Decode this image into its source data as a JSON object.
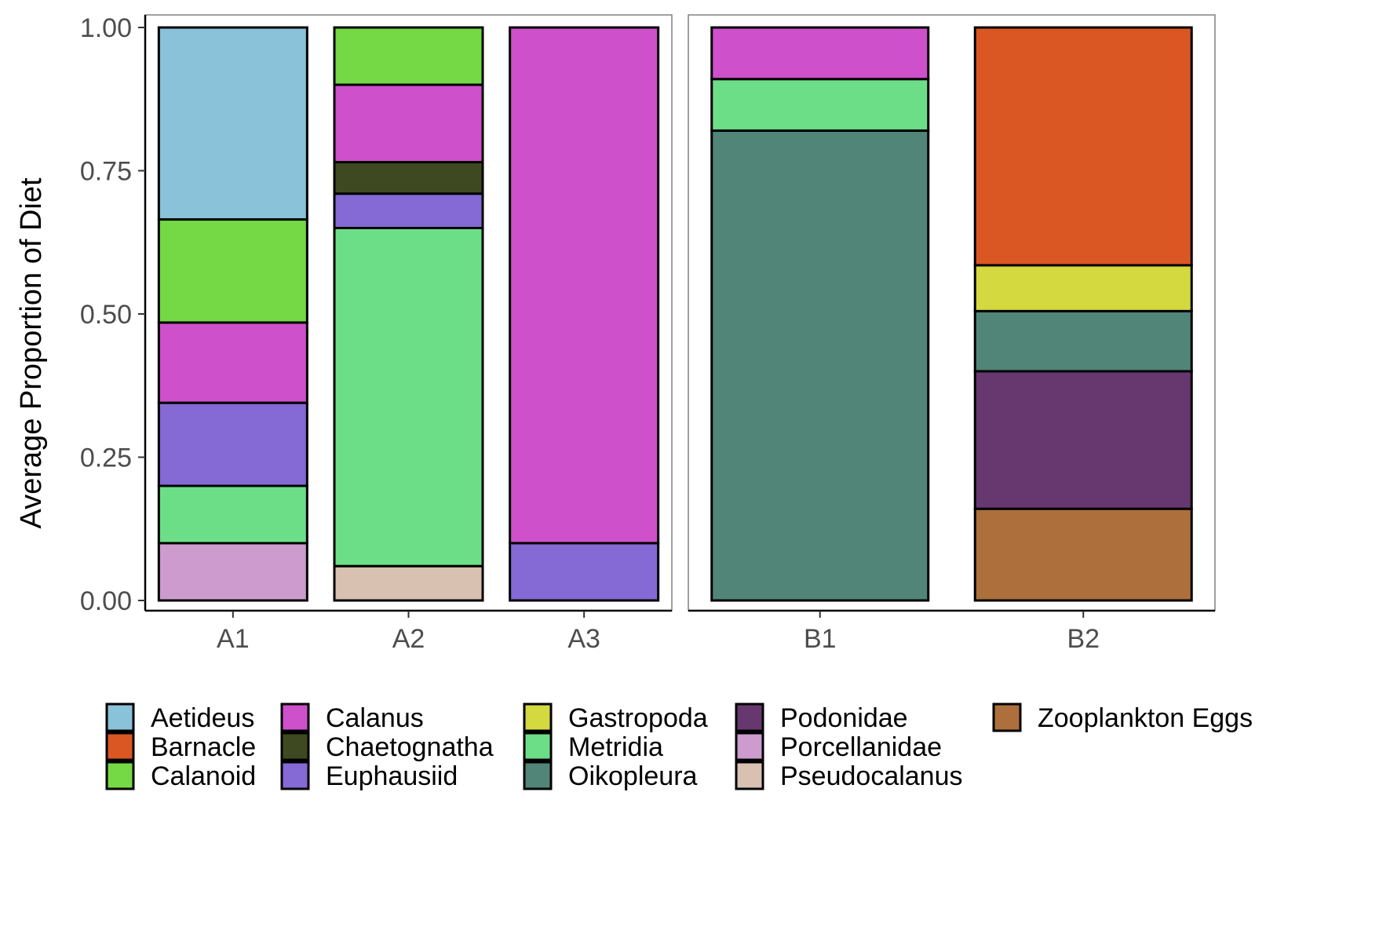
{
  "chart_data": {
    "type": "bar",
    "stacked": true,
    "ylabel": "Average Proportion of Diet",
    "xlabel": "",
    "ylim": [
      0,
      1
    ],
    "yticks": [
      "0.00",
      "0.25",
      "0.50",
      "0.75",
      "1.00"
    ],
    "ytick_values": [
      0,
      0.25,
      0.5,
      0.75,
      1.0
    ],
    "grid": false,
    "legend_position": "bottom",
    "panels": [
      {
        "categories": [
          "A1",
          "A2",
          "A3"
        ]
      },
      {
        "categories": [
          "B1",
          "B2"
        ]
      }
    ],
    "legend": [
      {
        "name": "Aetideus",
        "color": "#8AC2D9"
      },
      {
        "name": "Barnacle",
        "color": "#DA5724"
      },
      {
        "name": "Calanoid",
        "color": "#74D944"
      },
      {
        "name": "Calanus",
        "color": "#CE50CA"
      },
      {
        "name": "Chaetognatha",
        "color": "#3F4921"
      },
      {
        "name": "Euphausiid",
        "color": "#8569D5"
      },
      {
        "name": "Gastropoda",
        "color": "#D3D93E"
      },
      {
        "name": "Metridia",
        "color": "#6DDE88"
      },
      {
        "name": "Oikopleura",
        "color": "#508578"
      },
      {
        "name": "Podonidae",
        "color": "#673770"
      },
      {
        "name": "Porcellanidae",
        "color": "#CD9BCD"
      },
      {
        "name": "Pseudocalanus",
        "color": "#D8C1B1"
      },
      {
        "name": "Zooplankton Eggs",
        "color": "#AD6F3B"
      }
    ],
    "bars": [
      {
        "category": "A1",
        "segments": [
          {
            "species": "Porcellanidae",
            "value": 0.1
          },
          {
            "species": "Metridia",
            "value": 0.1
          },
          {
            "species": "Euphausiid",
            "value": 0.145
          },
          {
            "species": "Calanus",
            "value": 0.14
          },
          {
            "species": "Calanoid",
            "value": 0.18
          },
          {
            "species": "Aetideus",
            "value": 0.335
          }
        ]
      },
      {
        "category": "A2",
        "segments": [
          {
            "species": "Pseudocalanus",
            "value": 0.06
          },
          {
            "species": "Metridia",
            "value": 0.59
          },
          {
            "species": "Euphausiid",
            "value": 0.06
          },
          {
            "species": "Chaetognatha",
            "value": 0.055
          },
          {
            "species": "Calanus",
            "value": 0.135
          },
          {
            "species": "Calanoid",
            "value": 0.1
          }
        ]
      },
      {
        "category": "A3",
        "segments": [
          {
            "species": "Euphausiid",
            "value": 0.1
          },
          {
            "species": "Calanus",
            "value": 0.9
          }
        ]
      },
      {
        "category": "B1",
        "segments": [
          {
            "species": "Oikopleura",
            "value": 0.82
          },
          {
            "species": "Metridia",
            "value": 0.09
          },
          {
            "species": "Calanus",
            "value": 0.09
          }
        ]
      },
      {
        "category": "B2",
        "segments": [
          {
            "species": "Zooplankton Eggs",
            "value": 0.16
          },
          {
            "species": "Podonidae",
            "value": 0.24
          },
          {
            "species": "Oikopleura",
            "value": 0.105
          },
          {
            "species": "Gastropoda",
            "value": 0.08
          },
          {
            "species": "Barnacle",
            "value": 0.415
          }
        ]
      }
    ]
  }
}
